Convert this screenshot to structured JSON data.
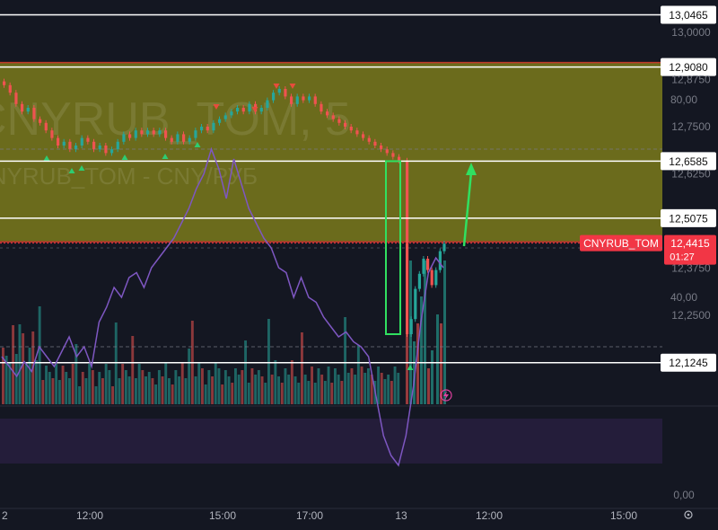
{
  "chart_data": {
    "type": "candlestick",
    "symbol": "CNYRUB_TOM",
    "watermark": {
      "line1": "CNYRUB_TOM, 5",
      "line2": "CNYRUB_TOM - CNY/РУБ"
    },
    "price_axis": {
      "range": [
        12.05,
        13.065
      ],
      "ticks": [
        "13,0000",
        "12,8750",
        "12,7500",
        "12,6250",
        "12,3750",
        "12,2500"
      ]
    },
    "horizontal_levels": [
      {
        "value": 13.0465,
        "label": "13,0465"
      },
      {
        "value": 12.908,
        "label": "12,9080"
      },
      {
        "value": 12.6585,
        "label": "12,6585"
      },
      {
        "value": 12.5075,
        "label": "12,5075"
      },
      {
        "value": 12.1245,
        "label": "12,1245"
      }
    ],
    "zone": {
      "from": 12.92,
      "to": 12.445
    },
    "current_price": {
      "value": 12.4415,
      "label": "12,4415",
      "countdown": "01:27",
      "color": "#f23645"
    },
    "time_axis": {
      "labels": [
        "2",
        "12:00",
        "15:00",
        "17:00",
        "13",
        "12:00",
        "15:00"
      ]
    },
    "indicator": {
      "ticks": [
        "80,00",
        "40,00",
        "0,00"
      ],
      "range": [
        0,
        80
      ],
      "band": [
        30,
        70
      ],
      "color": "#7e57c2"
    },
    "colors": {
      "up": "#26a69a",
      "down": "#ef5350",
      "zone": "#6b6b1c",
      "annotation": "#30e060"
    },
    "close_series": [
      12.86,
      12.84,
      12.81,
      12.79,
      12.8,
      12.77,
      12.76,
      12.74,
      12.72,
      12.7,
      12.71,
      12.69,
      12.7,
      12.72,
      12.71,
      12.69,
      12.7,
      12.68,
      12.69,
      12.71,
      12.73,
      12.72,
      12.74,
      12.73,
      12.74,
      12.73,
      12.74,
      12.72,
      12.71,
      12.73,
      12.71,
      12.72,
      12.74,
      12.75,
      12.74,
      12.76,
      12.77,
      12.78,
      12.79,
      12.8,
      12.79,
      12.81,
      12.79,
      12.8,
      12.82,
      12.84,
      12.85,
      12.83,
      12.81,
      12.83,
      12.82,
      12.83,
      12.81,
      12.79,
      12.78,
      12.77,
      12.76,
      12.75,
      12.74,
      12.73,
      12.72,
      12.71,
      12.7,
      12.69,
      12.68,
      12.67,
      12.66,
      12.2,
      12.24,
      12.32,
      12.36,
      12.4,
      12.37,
      12.33,
      12.37,
      12.42,
      12.44
    ],
    "rsi_series": [
      28,
      26,
      24,
      27,
      25,
      30,
      28,
      26,
      29,
      32,
      28,
      30,
      26,
      35,
      38,
      42,
      40,
      44,
      45,
      42,
      46,
      48,
      50,
      52,
      55,
      58,
      62,
      65,
      70,
      66,
      60,
      68,
      63,
      58,
      55,
      52,
      50,
      46,
      45,
      40,
      44,
      40,
      39,
      36,
      34,
      32,
      33,
      31,
      30,
      28,
      20,
      12,
      8,
      6,
      12,
      22,
      35,
      45,
      48,
      46
    ]
  }
}
